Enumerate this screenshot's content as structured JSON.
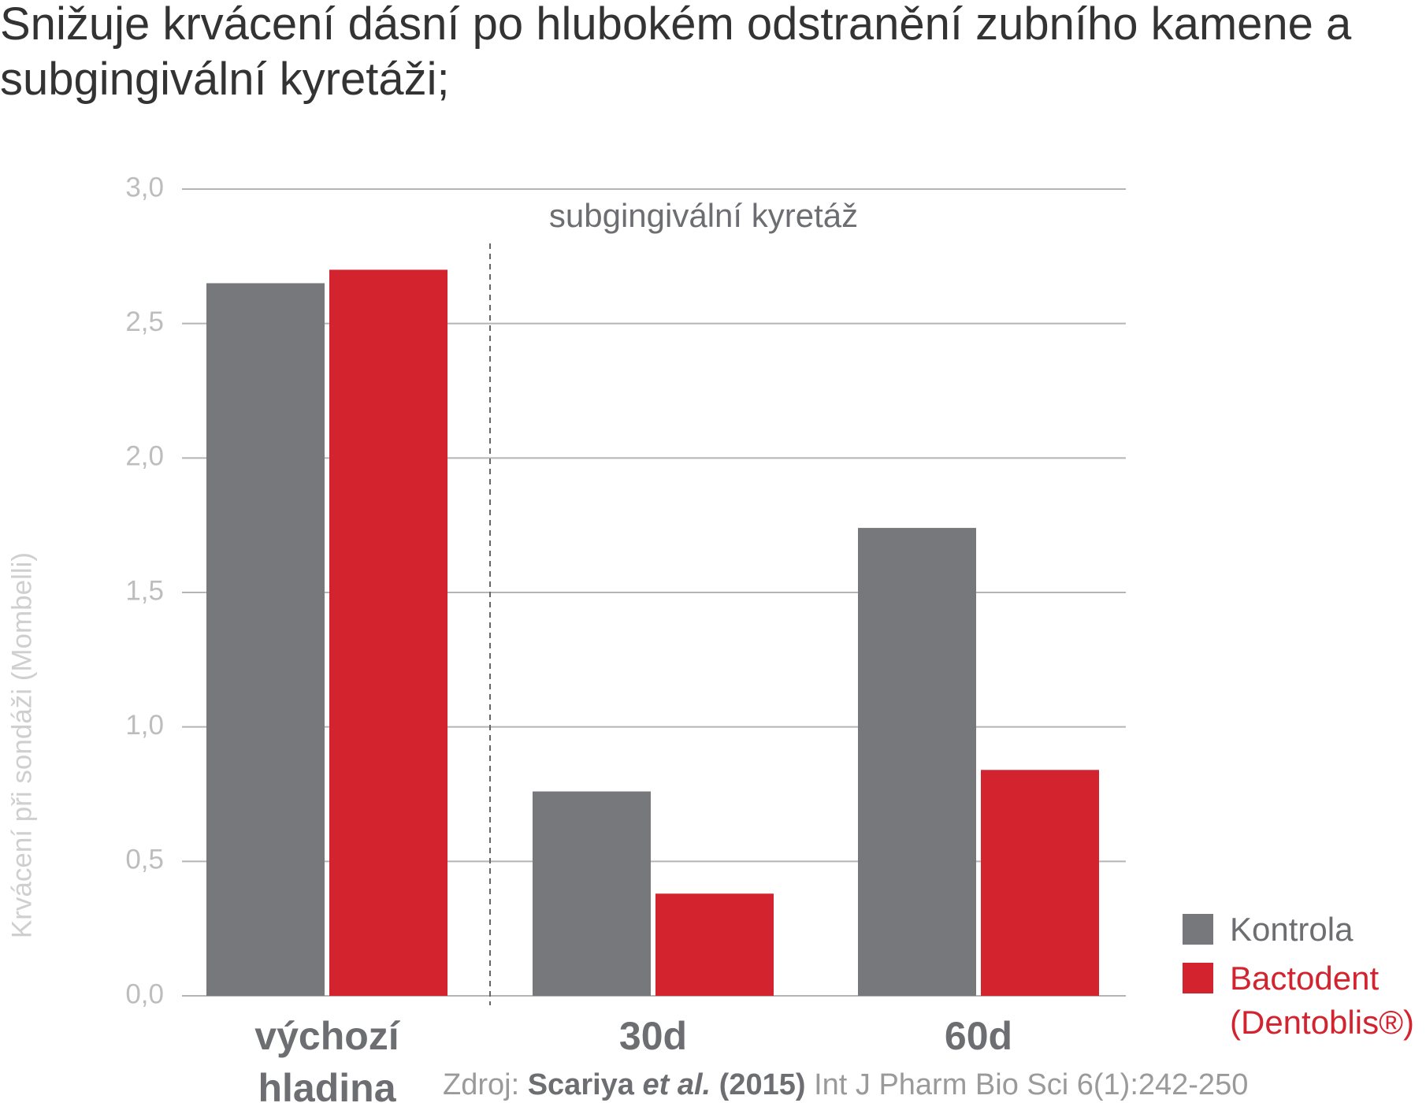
{
  "chart_data": {
    "type": "bar",
    "title": "Snižuje krvácení dásní po hlubokém odstranění zubního kamene a subgingivální kyretáži;",
    "y_label": "Krvácení při sondáži (Mombelli)",
    "annotation": "subgingivální kyretáž",
    "categories": [
      "výchozí hladina",
      "30d",
      "60d"
    ],
    "series": [
      {
        "name": "Kontrola",
        "color": "#77787b",
        "values": [
          2.65,
          0.76,
          1.74
        ]
      },
      {
        "name": "Bactodent (Dentoblis®)",
        "color": "#d2232e",
        "values": [
          2.7,
          0.38,
          0.84
        ]
      }
    ],
    "ylim": [
      0,
      3
    ],
    "yticks": [
      {
        "value": 0,
        "label": "0,0"
      },
      {
        "value": 0.5,
        "label": "0,5"
      },
      {
        "value": 1,
        "label": "1,0"
      },
      {
        "value": 1.5,
        "label": "1,5"
      },
      {
        "value": 2,
        "label": "2,0"
      },
      {
        "value": 2.5,
        "label": "2,5"
      },
      {
        "value": 3,
        "label": "3,0"
      }
    ],
    "grid": true,
    "source": [
      "Zdroj:",
      "Scariya",
      "et al.",
      "(2015)",
      "Int J Pharm Bio Sci 6(1):242-250"
    ]
  }
}
